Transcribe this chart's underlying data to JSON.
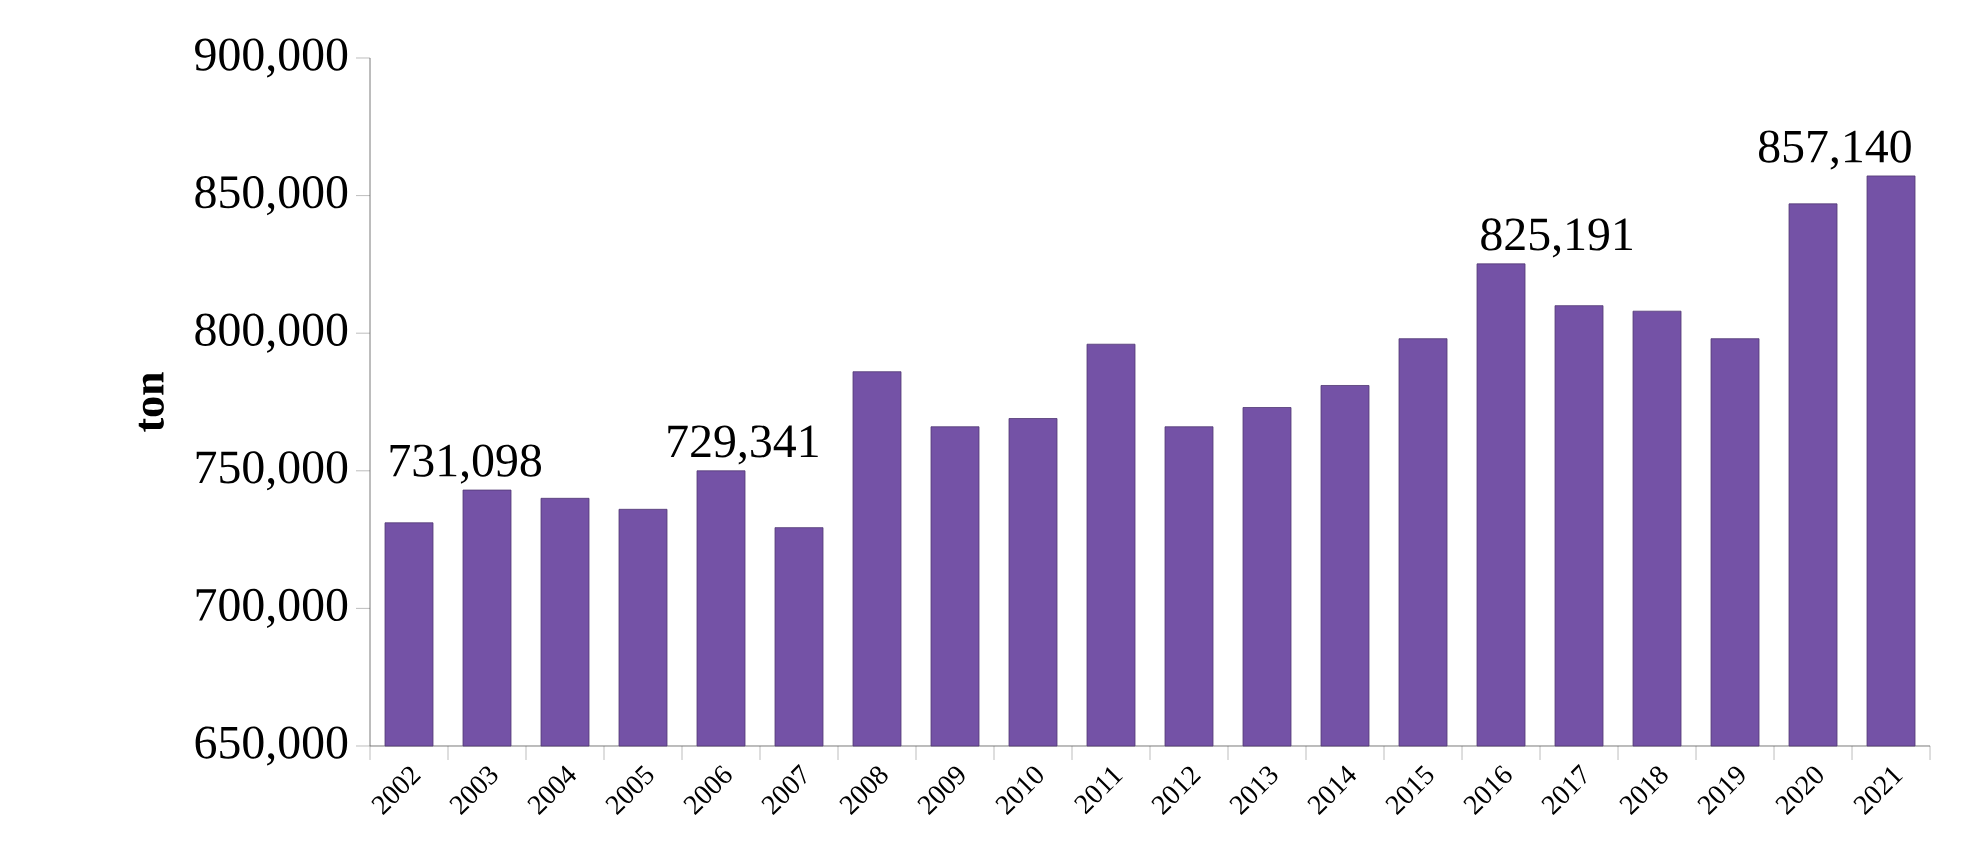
{
  "chart_data": {
    "type": "bar",
    "ylabel": "ton",
    "categories": [
      "2002",
      "2003",
      "2004",
      "2005",
      "2006",
      "2007",
      "2008",
      "2009",
      "2010",
      "2011",
      "2012",
      "2013",
      "2014",
      "2015",
      "2016",
      "2017",
      "2018",
      "2019",
      "2020",
      "2021"
    ],
    "values": [
      731098,
      743000,
      740000,
      736000,
      750000,
      729341,
      786000,
      766000,
      769000,
      796000,
      766000,
      773000,
      781000,
      798000,
      825191,
      810000,
      808000,
      798000,
      847000,
      857140
    ],
    "value_labels": [
      "731,098",
      null,
      null,
      null,
      null,
      "729,341",
      null,
      null,
      null,
      null,
      null,
      null,
      null,
      null,
      "825,191",
      null,
      null,
      null,
      null,
      "857,140"
    ],
    "color": "#7452a6",
    "ylim": [
      650000,
      900000
    ],
    "yticks": [
      {
        "value": 650000,
        "label": "650,000"
      },
      {
        "value": 700000,
        "label": "700,000"
      },
      {
        "value": 750000,
        "label": "750,000"
      },
      {
        "value": 800000,
        "label": "800,000"
      },
      {
        "value": 850000,
        "label": "850,000"
      },
      {
        "value": 900000,
        "label": "900,000"
      }
    ],
    "grid": false
  }
}
